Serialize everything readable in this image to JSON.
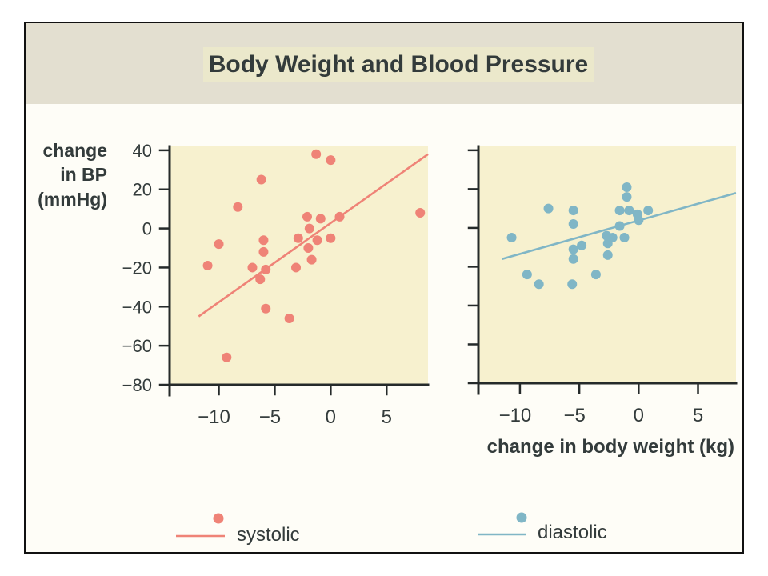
{
  "title": "Body Weight and Blood Pressure",
  "colors": {
    "panel_background": "#fefdf7",
    "title_band": "#e3dfd0",
    "title_highlight": "#ebe8cb",
    "plot_background": "#f7f1cf",
    "axis": "#252a2a",
    "text": "#333b3b"
  },
  "chart_data": [
    {
      "type": "scatter",
      "ylabel": [
        "change",
        "in BP",
        "(mmHg)"
      ],
      "xlim": [
        -14.4,
        8.7
      ],
      "ylim": [
        -80,
        42
      ],
      "xticks": [
        -10,
        -5,
        0,
        5
      ],
      "xtick_labels": [
        "−10",
        "−5",
        "0",
        "5"
      ],
      "yticks": [
        40,
        20,
        0,
        -20,
        -40,
        -60,
        -80
      ],
      "ytick_labels": [
        "40",
        "20",
        "0",
        "−20",
        "−40",
        "−60",
        "−80"
      ],
      "grid": false,
      "legend": "bottom",
      "series": [
        {
          "name": "systolic",
          "color": "#ef8377",
          "points": [
            [
              -1.3,
              38
            ],
            [
              0.0,
              35
            ],
            [
              -6.2,
              25
            ],
            [
              -8.3,
              11
            ],
            [
              -2.1,
              6
            ],
            [
              -0.9,
              5
            ],
            [
              0.8,
              6
            ],
            [
              8.0,
              8
            ],
            [
              -1.9,
              0
            ],
            [
              -6.0,
              -6
            ],
            [
              -2.9,
              -5
            ],
            [
              -1.2,
              -6
            ],
            [
              0.0,
              -5
            ],
            [
              -10.0,
              -8
            ],
            [
              -2.0,
              -10
            ],
            [
              -6.0,
              -12
            ],
            [
              -1.7,
              -16
            ],
            [
              -11.0,
              -19
            ],
            [
              -7.0,
              -20
            ],
            [
              -5.8,
              -21
            ],
            [
              -3.1,
              -20
            ],
            [
              -6.3,
              -26
            ],
            [
              -5.8,
              -41
            ],
            [
              -3.7,
              -46
            ],
            [
              -9.3,
              -66
            ]
          ],
          "trend_line": [
            [
              -11.8,
              -45
            ],
            [
              8.7,
              38
            ]
          ]
        }
      ]
    },
    {
      "type": "scatter",
      "xlabel": "change in body weight (kg)",
      "xlim": [
        -13.5,
        8.2
      ],
      "ylim": [
        -80,
        42
      ],
      "xticks": [
        -10,
        -5,
        0,
        5
      ],
      "xtick_labels": [
        "−10",
        "−5",
        "0",
        "5"
      ],
      "yticks": [
        40,
        20,
        0,
        -20,
        -40,
        -60,
        -80
      ],
      "grid": false,
      "legend": "bottom",
      "series": [
        {
          "name": "diastolic",
          "color": "#80b6c6",
          "points": [
            [
              -1.0,
              21
            ],
            [
              -1.0,
              16
            ],
            [
              -7.6,
              10
            ],
            [
              -5.5,
              9
            ],
            [
              -1.6,
              9
            ],
            [
              -0.8,
              9
            ],
            [
              0.8,
              9
            ],
            [
              -0.1,
              7
            ],
            [
              -5.5,
              2
            ],
            [
              -1.6,
              1
            ],
            [
              0.0,
              4
            ],
            [
              -10.7,
              -5
            ],
            [
              -2.7,
              -4
            ],
            [
              -2.2,
              -5
            ],
            [
              -1.2,
              -5
            ],
            [
              -4.8,
              -9
            ],
            [
              -2.6,
              -8
            ],
            [
              -5.5,
              -11
            ],
            [
              -5.5,
              -16
            ],
            [
              -2.6,
              -14
            ],
            [
              -9.4,
              -24
            ],
            [
              -3.6,
              -24
            ],
            [
              -8.4,
              -29
            ],
            [
              -5.6,
              -29
            ]
          ],
          "trend_line": [
            [
              -11.5,
              -16
            ],
            [
              8.2,
              18
            ]
          ]
        }
      ]
    }
  ]
}
